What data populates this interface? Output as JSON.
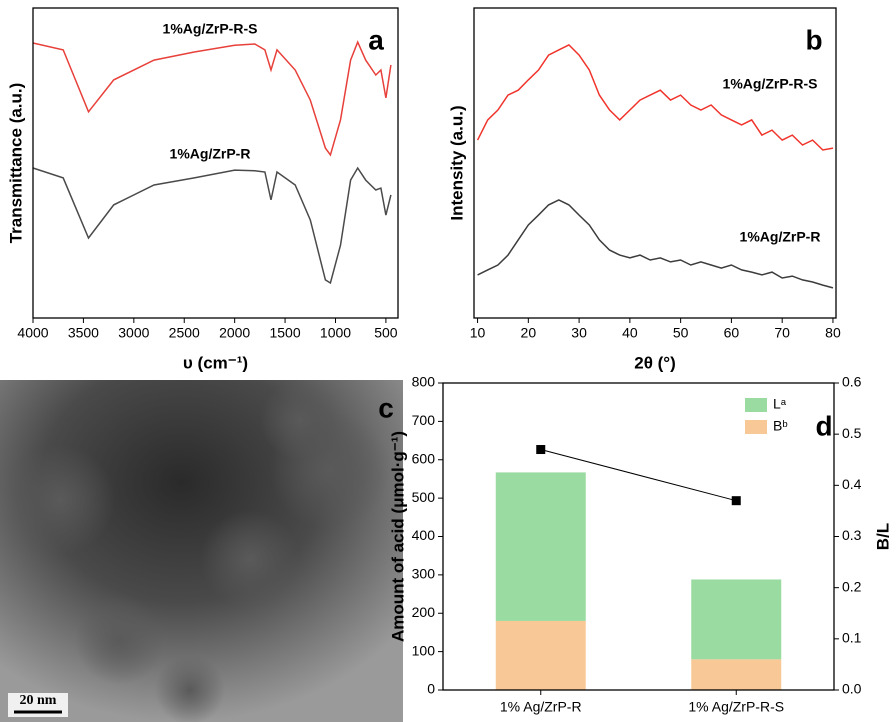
{
  "chart_data": [
    {
      "type": "line",
      "panel_label": "a",
      "xlabel": "υ (cm⁻¹)",
      "ylabel": "Transmittance (a.u.)",
      "xlim": [
        4000,
        380
      ],
      "xticks": [
        4000,
        3500,
        3000,
        2500,
        2000,
        1500,
        1000,
        500
      ],
      "ylim": [
        0,
        100
      ],
      "x": [
        4000,
        3700,
        3450,
        3200,
        2800,
        2400,
        2000,
        1800,
        1700,
        1640,
        1580,
        1400,
        1250,
        1100,
        1050,
        950,
        850,
        780,
        700,
        600,
        550,
        500,
        450
      ],
      "series": [
        {
          "name": "1%Ag/ZrP-R-S",
          "color": "#e8403a",
          "values": [
            88.7,
            86.5,
            66.5,
            76.8,
            83.2,
            85.8,
            88,
            88.4,
            86.5,
            80,
            86.5,
            80,
            70.3,
            54.8,
            52.6,
            63.9,
            83.2,
            89,
            83.2,
            78.4,
            80,
            71,
            81.6
          ]
        },
        {
          "name": "1%Ag/ZrP-R",
          "color": "#4a4a4a",
          "values": [
            48.4,
            45.2,
            25.8,
            36.5,
            42.9,
            45.2,
            47.7,
            47.5,
            47.1,
            38.1,
            47.1,
            42.9,
            31.6,
            12.3,
            11.3,
            23.5,
            44.5,
            48.4,
            44.5,
            41.3,
            41.9,
            33.2,
            39.7
          ]
        }
      ]
    },
    {
      "type": "line",
      "panel_label": "b",
      "xlabel": "2θ (°)",
      "ylabel": "Intensity (a.u.)",
      "xlim": [
        9.3,
        80.6
      ],
      "xticks": [
        10,
        20,
        30,
        40,
        50,
        60,
        70,
        80
      ],
      "ylim": [
        0,
        100
      ],
      "x": [
        10,
        12,
        14,
        16,
        18,
        20,
        22,
        24,
        26,
        28,
        30,
        32,
        34,
        36,
        38,
        40,
        42,
        44,
        46,
        48,
        50,
        52,
        54,
        56,
        58,
        60,
        62,
        64,
        66,
        68,
        70,
        72,
        74,
        76,
        78,
        80
      ],
      "series": [
        {
          "name": "1%Ag/ZrP-R-S",
          "color": "#f0342c",
          "values": [
            57.4,
            63.9,
            67.1,
            71.9,
            73.5,
            76.8,
            80,
            84.8,
            86.5,
            88.1,
            84.8,
            80,
            71.9,
            67.1,
            63.9,
            67.1,
            70.3,
            71.9,
            73.5,
            70.3,
            71.9,
            68.7,
            67.1,
            68.7,
            65.5,
            63.9,
            62.3,
            63.9,
            59,
            60.6,
            57.4,
            59,
            55.8,
            57.4,
            54.2,
            54.8
          ]
        },
        {
          "name": "1%Ag/ZrP-R",
          "color": "#3c3c3c",
          "values": [
            13.9,
            15.5,
            17.1,
            20.3,
            25.2,
            30,
            33.2,
            36.5,
            38.1,
            36.5,
            33.2,
            30,
            25.2,
            21.9,
            20.3,
            19.4,
            20.3,
            18.7,
            19.4,
            18.1,
            18.7,
            17.1,
            18.1,
            17.1,
            16.1,
            17.1,
            15.5,
            14.8,
            13.9,
            14.8,
            12.9,
            13.5,
            12.3,
            11.6,
            10.6,
            9.7
          ]
        }
      ]
    },
    {
      "type": "image",
      "panel_label": "c",
      "scale_bar": "20 nm"
    },
    {
      "type": "bar",
      "panel_label": "d",
      "stacked": true,
      "ylabel": "Amount of acid (μmol·g⁻¹)",
      "y2label": "B/L",
      "categories": [
        "1% Ag/ZrP-R",
        "1% Ag/ZrP-R-S"
      ],
      "ylim": [
        0,
        800
      ],
      "yticks": [
        0,
        100,
        200,
        300,
        400,
        500,
        600,
        700,
        800
      ],
      "y2lim": [
        0,
        0.6
      ],
      "y2ticks": [
        {
          "value": 0,
          "label": "0.0"
        },
        0.1,
        0.2,
        0.3,
        0.4,
        0.5,
        0.6
      ],
      "series": [
        {
          "name": "Bᵇ",
          "color": "#f9c897",
          "values": [
            180,
            80
          ]
        },
        {
          "name": "Lᵃ",
          "color": "#99dba0",
          "values": [
            387,
            208
          ]
        },
        {
          "type": "line",
          "axis": "y2",
          "color": "#000000",
          "values": [
            0.47,
            0.37
          ]
        }
      ]
    }
  ]
}
